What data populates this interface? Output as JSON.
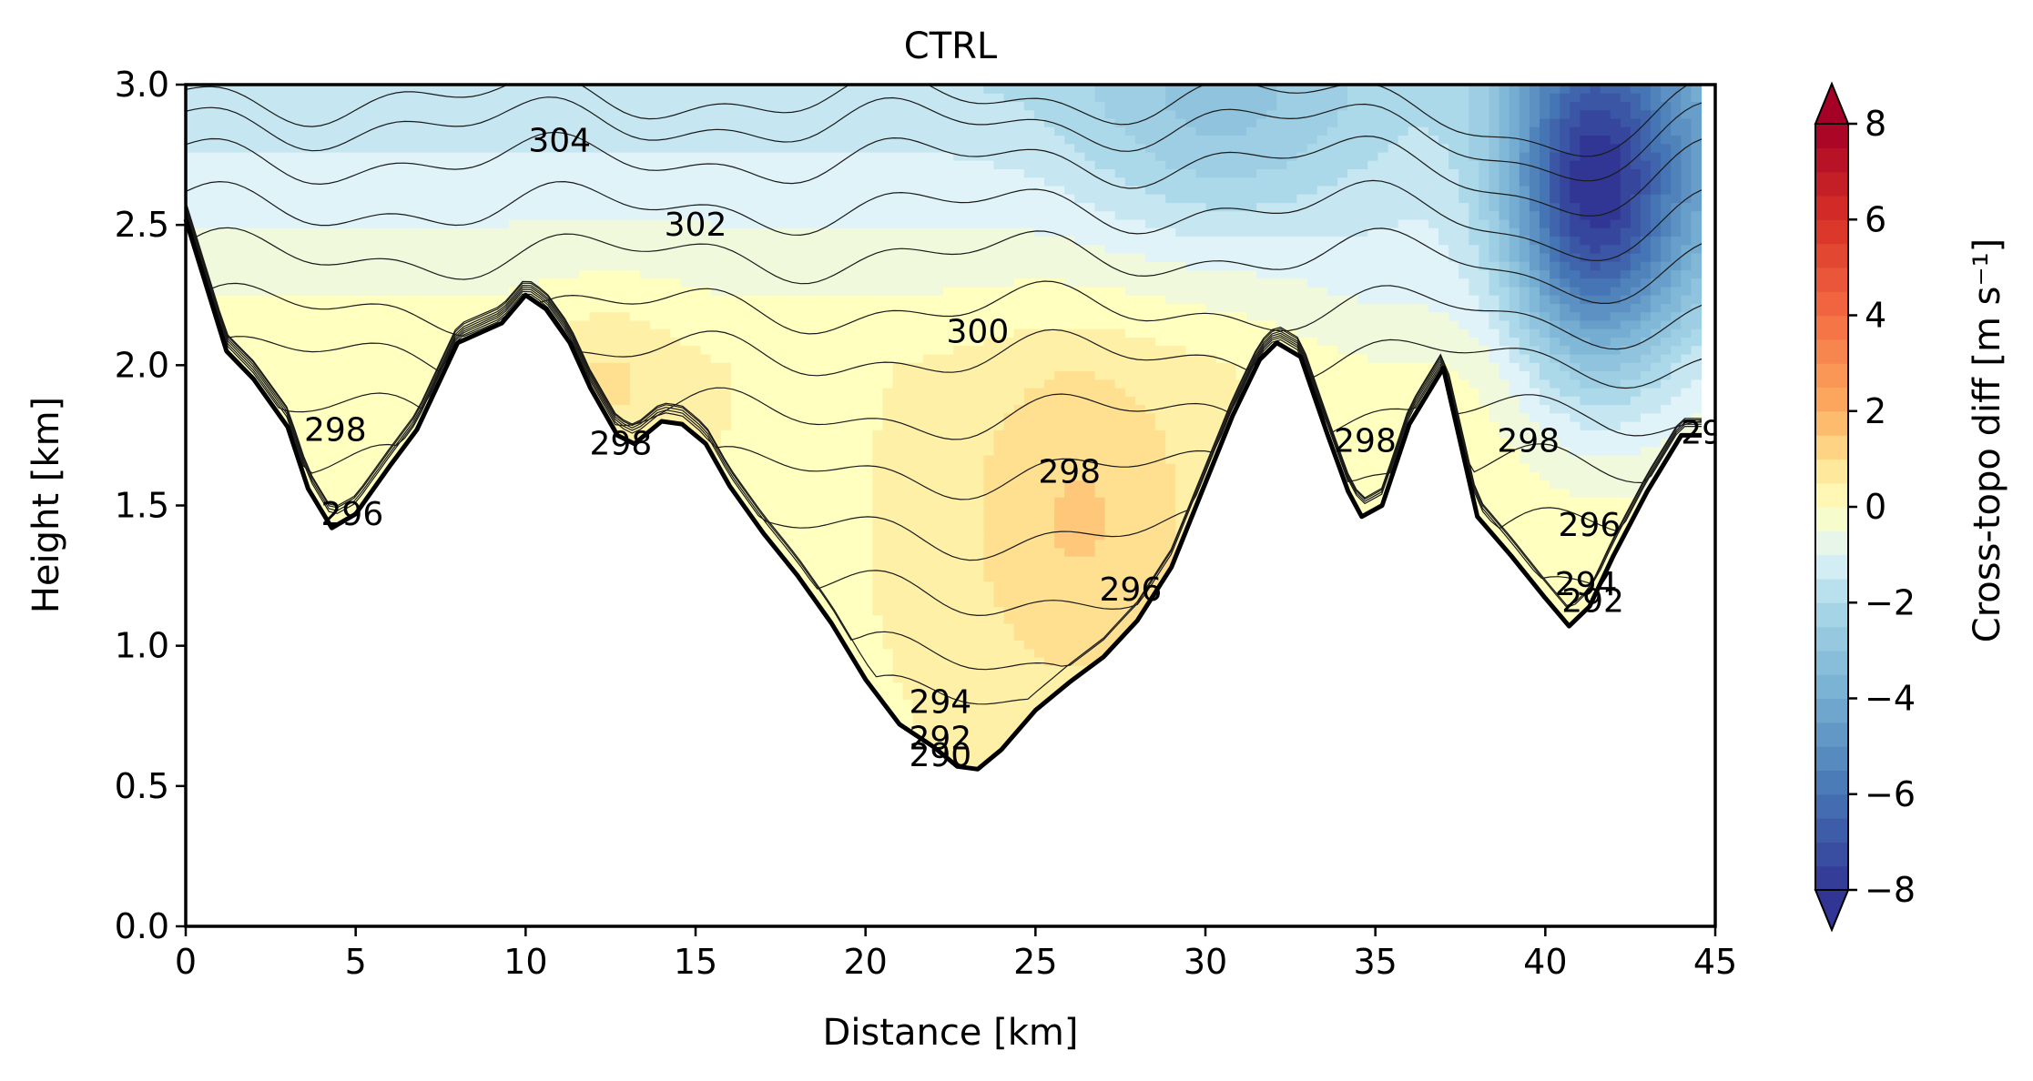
{
  "chart_data": {
    "type": "contour",
    "title": "CTRL",
    "xlabel": "Distance [km]",
    "ylabel": "Height [km]",
    "xlim": [
      0,
      45
    ],
    "ylim": [
      0,
      3.0
    ],
    "x_ticks": [
      0,
      5,
      10,
      15,
      20,
      25,
      30,
      35,
      40,
      45
    ],
    "y_ticks": [
      0.0,
      0.5,
      1.0,
      1.5,
      2.0,
      2.5,
      3.0
    ],
    "colorbar": {
      "label": "Cross-topo diff [m s⁻¹]",
      "range": [
        -8,
        8
      ],
      "ticks": [
        -8,
        -6,
        -4,
        -2,
        0,
        2,
        4,
        6,
        8
      ],
      "tick_labels": [
        "−8",
        "−6",
        "−4",
        "−2",
        "0",
        "2",
        "4",
        "6",
        "8"
      ],
      "colormap": "RdYlBu_r",
      "extend": "both"
    },
    "terrain": {
      "x": [
        0,
        1.2,
        2.0,
        3.0,
        3.6,
        4.3,
        5.0,
        6.0,
        6.8,
        8.0,
        9.3,
        10.0,
        10.6,
        11.3,
        11.9,
        12.7,
        13.2,
        14.0,
        14.6,
        15.3,
        16.0,
        17.0,
        18.0,
        19.0,
        20.0,
        21.0,
        22.0,
        22.7,
        23.3,
        24.0,
        25.0,
        26.0,
        27.0,
        28.0,
        29.0,
        30.0,
        30.8,
        31.6,
        32.1,
        32.8,
        33.6,
        34.2,
        34.6,
        35.2,
        36.0,
        37.0,
        38.0,
        39.0,
        40.0,
        40.7,
        41.3,
        42.0,
        43.0,
        44.0,
        44.6
      ],
      "y": [
        2.52,
        2.05,
        1.95,
        1.78,
        1.56,
        1.42,
        1.47,
        1.64,
        1.77,
        2.08,
        2.15,
        2.25,
        2.2,
        2.08,
        1.92,
        1.75,
        1.72,
        1.8,
        1.79,
        1.72,
        1.57,
        1.4,
        1.25,
        1.08,
        0.88,
        0.72,
        0.64,
        0.57,
        0.56,
        0.63,
        0.77,
        0.87,
        0.96,
        1.09,
        1.28,
        1.58,
        1.82,
        2.02,
        2.08,
        2.03,
        1.75,
        1.55,
        1.46,
        1.5,
        1.79,
        1.99,
        1.46,
        1.32,
        1.17,
        1.07,
        1.14,
        1.32,
        1.55,
        1.75,
        1.75
      ]
    },
    "isentrope_labels": [
      {
        "text": "304",
        "x": 11.0,
        "y": 2.8
      },
      {
        "text": "302",
        "x": 15.0,
        "y": 2.5
      },
      {
        "text": "300",
        "x": 23.3,
        "y": 2.12
      },
      {
        "text": "298",
        "x": 4.4,
        "y": 1.77
      },
      {
        "text": "296",
        "x": 4.9,
        "y": 1.47
      },
      {
        "text": "298",
        "x": 12.8,
        "y": 1.72
      },
      {
        "text": "298",
        "x": 26.0,
        "y": 1.62
      },
      {
        "text": "296",
        "x": 27.8,
        "y": 1.2
      },
      {
        "text": "294",
        "x": 22.2,
        "y": 0.8
      },
      {
        "text": "292",
        "x": 22.2,
        "y": 0.67
      },
      {
        "text": "290",
        "x": 22.2,
        "y": 0.61
      },
      {
        "text": "298",
        "x": 34.7,
        "y": 1.73
      },
      {
        "text": "298",
        "x": 39.5,
        "y": 1.73
      },
      {
        "text": "296",
        "x": 41.3,
        "y": 1.43
      },
      {
        "text": "294",
        "x": 41.2,
        "y": 1.22
      },
      {
        "text": "292",
        "x": 41.4,
        "y": 1.16
      },
      {
        "text": "29",
        "x": 44.6,
        "y": 1.76
      }
    ],
    "isentrope_levels": [
      {
        "level": 305,
        "h": 2.95
      },
      {
        "level": 304,
        "h": 2.86
      },
      {
        "level": 303,
        "h": 2.73
      },
      {
        "level": 302,
        "h": 2.56
      },
      {
        "level": 301,
        "h": 2.39
      },
      {
        "level": 300,
        "h": 2.2
      },
      {
        "level": 299,
        "h": 2.03
      },
      {
        "level": 298,
        "h": 1.82
      },
      {
        "level": 297,
        "h": 1.62
      },
      {
        "level": 296,
        "h": 1.4
      },
      {
        "level": 295,
        "h": 1.18
      },
      {
        "level": 294,
        "h": 0.95
      },
      {
        "level": 293,
        "h": 0.8
      }
    ],
    "wind_field_description_units": "m s-1"
  }
}
